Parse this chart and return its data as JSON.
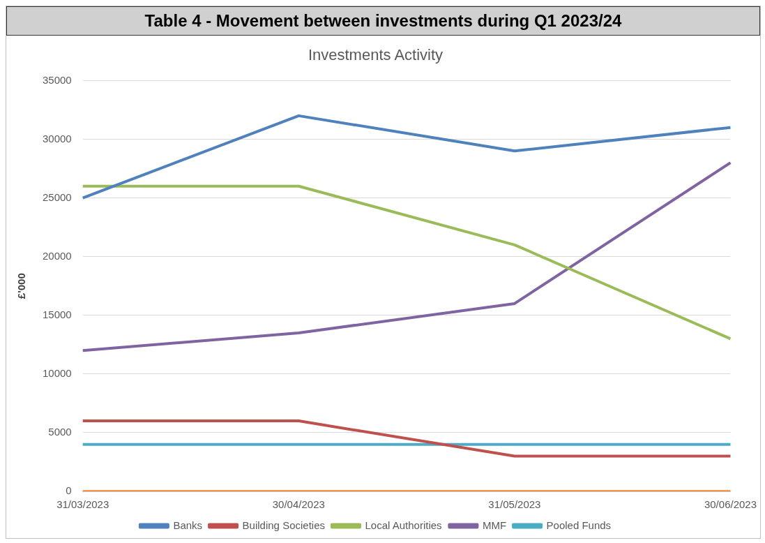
{
  "chart_data": {
    "type": "line",
    "title": "Table 4 - Movement between investments during Q1 2023/24",
    "subtitle": "Investments Activity",
    "ylabel": "£'000",
    "categories": [
      "31/03/2023",
      "30/04/2023",
      "31/05/2023",
      "30/06/2023"
    ],
    "series": [
      {
        "name": "Banks",
        "color": "#4f81bd",
        "values": [
          25000,
          32000,
          29000,
          31000
        ]
      },
      {
        "name": "Building Societies",
        "color": "#c0504d",
        "values": [
          6000,
          6000,
          3000,
          3000
        ]
      },
      {
        "name": "Local Authorities",
        "color": "#9bbb59",
        "values": [
          26000,
          26000,
          21000,
          13000
        ]
      },
      {
        "name": "MMF",
        "color": "#8064a2",
        "values": [
          12000,
          13500,
          16000,
          28000
        ]
      },
      {
        "name": "Pooled Funds",
        "color": "#4bacc6",
        "values": [
          4000,
          4000,
          4000,
          4000
        ]
      },
      {
        "color": "#f79646",
        "values": [
          0,
          0,
          0,
          0
        ]
      }
    ],
    "ylim": [
      0,
      35000
    ],
    "yticks": [
      0,
      5000,
      10000,
      15000,
      20000,
      25000,
      30000,
      35000
    ],
    "grid": "y",
    "legend": "bottom",
    "marker": "none",
    "line_style": "solid"
  }
}
